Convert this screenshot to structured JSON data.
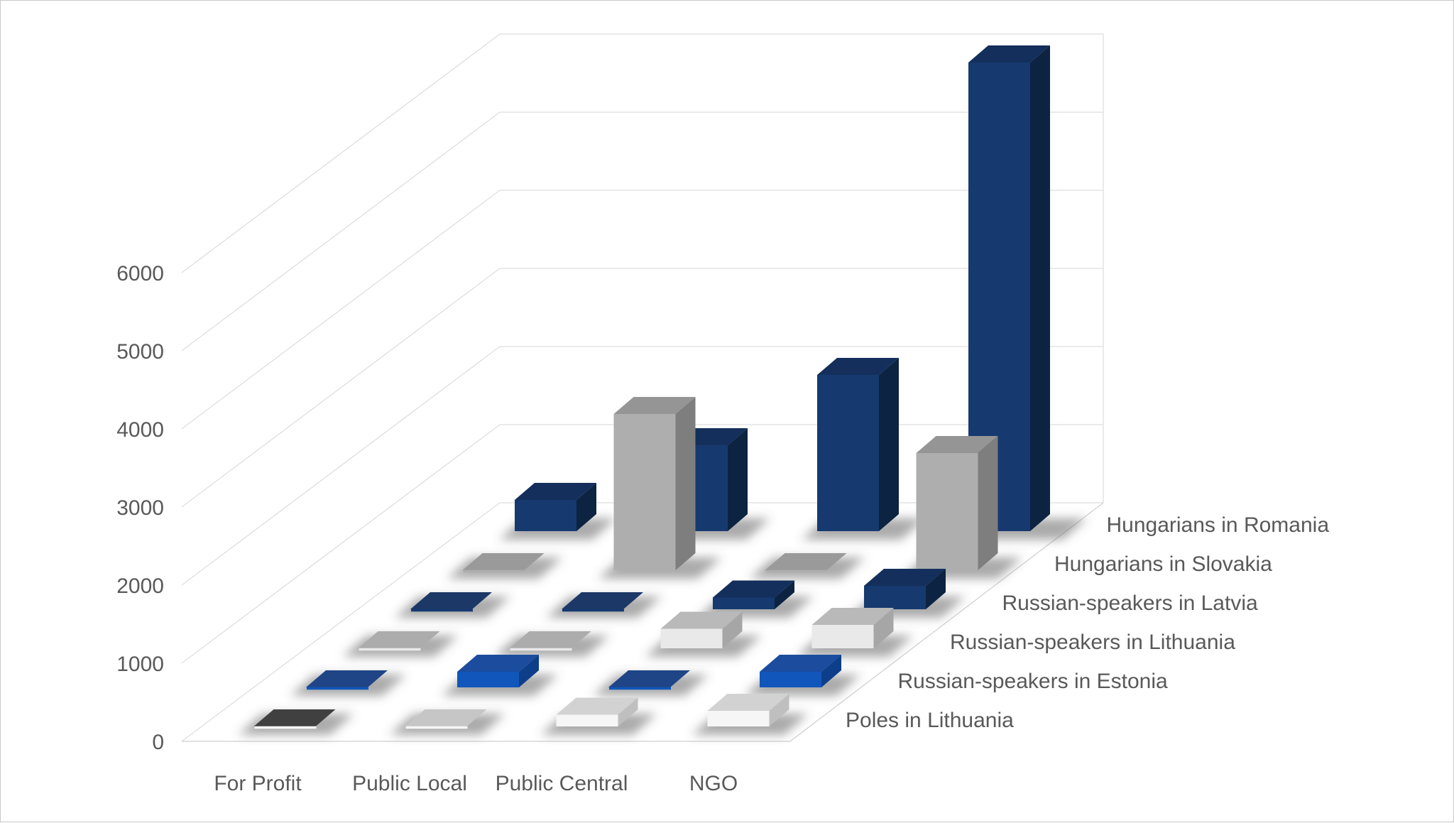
{
  "chart_data": {
    "type": "bar",
    "subtype": "3d-column",
    "title": "",
    "xlabel": "",
    "ylabel": "",
    "grid": true,
    "legend_position": "depth-axis-labels-right",
    "depth_order": "first series is the front row (closest to viewer), last is the back row",
    "categories": [
      "For Profit",
      "Public Local",
      "Public Central",
      "NGO"
    ],
    "series": [
      {
        "name": "Poles in Lithuania",
        "values": [
          0,
          0,
          150,
          200
        ],
        "colors": {
          "front": "#F6F6F6",
          "top": "#D2D2D2",
          "side": "#BFBFBF",
          "flat": "#C6C6C6"
        }
      },
      {
        "name": "Russian-speakers in Estonia",
        "values": [
          0,
          200,
          0,
          200
        ],
        "colors": {
          "front": "#1156BA",
          "top": "#1C4C9E",
          "side": "#0D3E8A",
          "flat": "#1F4586"
        }
      },
      {
        "name": "Russian-speakers in Lithuania",
        "values": [
          0,
          0,
          250,
          300
        ],
        "colors": {
          "front": "#E9E9E9",
          "top": "#B9B9B9",
          "side": "#A6A6A6",
          "flat": "#ACACAC"
        }
      },
      {
        "name": "Russian-speakers in Latvia",
        "values": [
          0,
          0,
          150,
          300
        ],
        "colors": {
          "front": "#163A6F",
          "top": "#142F5B",
          "side": "#0C2342",
          "flat": "#1B3866"
        }
      },
      {
        "name": "Hungarians in Slovakia",
        "values": [
          0,
          2000,
          0,
          1500
        ],
        "colors": {
          "front": "#AEAEAE",
          "top": "#959595",
          "side": "#7E7E7E",
          "flat": "#9A9A9A"
        }
      },
      {
        "name": "Hungarians in Romania",
        "values": [
          400,
          1100,
          2000,
          6000
        ],
        "colors": {
          "front": "#163A6F",
          "top": "#142F5B",
          "side": "#0C2342",
          "flat": "#1B3866"
        }
      }
    ],
    "flat_color_overrides": [
      {
        "series": "Poles in Lithuania",
        "category": "For Profit",
        "color": "#404040"
      }
    ],
    "y_axis": {
      "min": 0,
      "max": 6000,
      "interval": 1000,
      "tick_labels": [
        "0",
        "1000",
        "2000",
        "3000",
        "4000",
        "5000",
        "6000"
      ]
    },
    "colors_meta": {
      "text": "#595959",
      "gridline": "#D6D6D6",
      "canvas_border": "#C9C9C9",
      "shadow": "#585858"
    }
  }
}
